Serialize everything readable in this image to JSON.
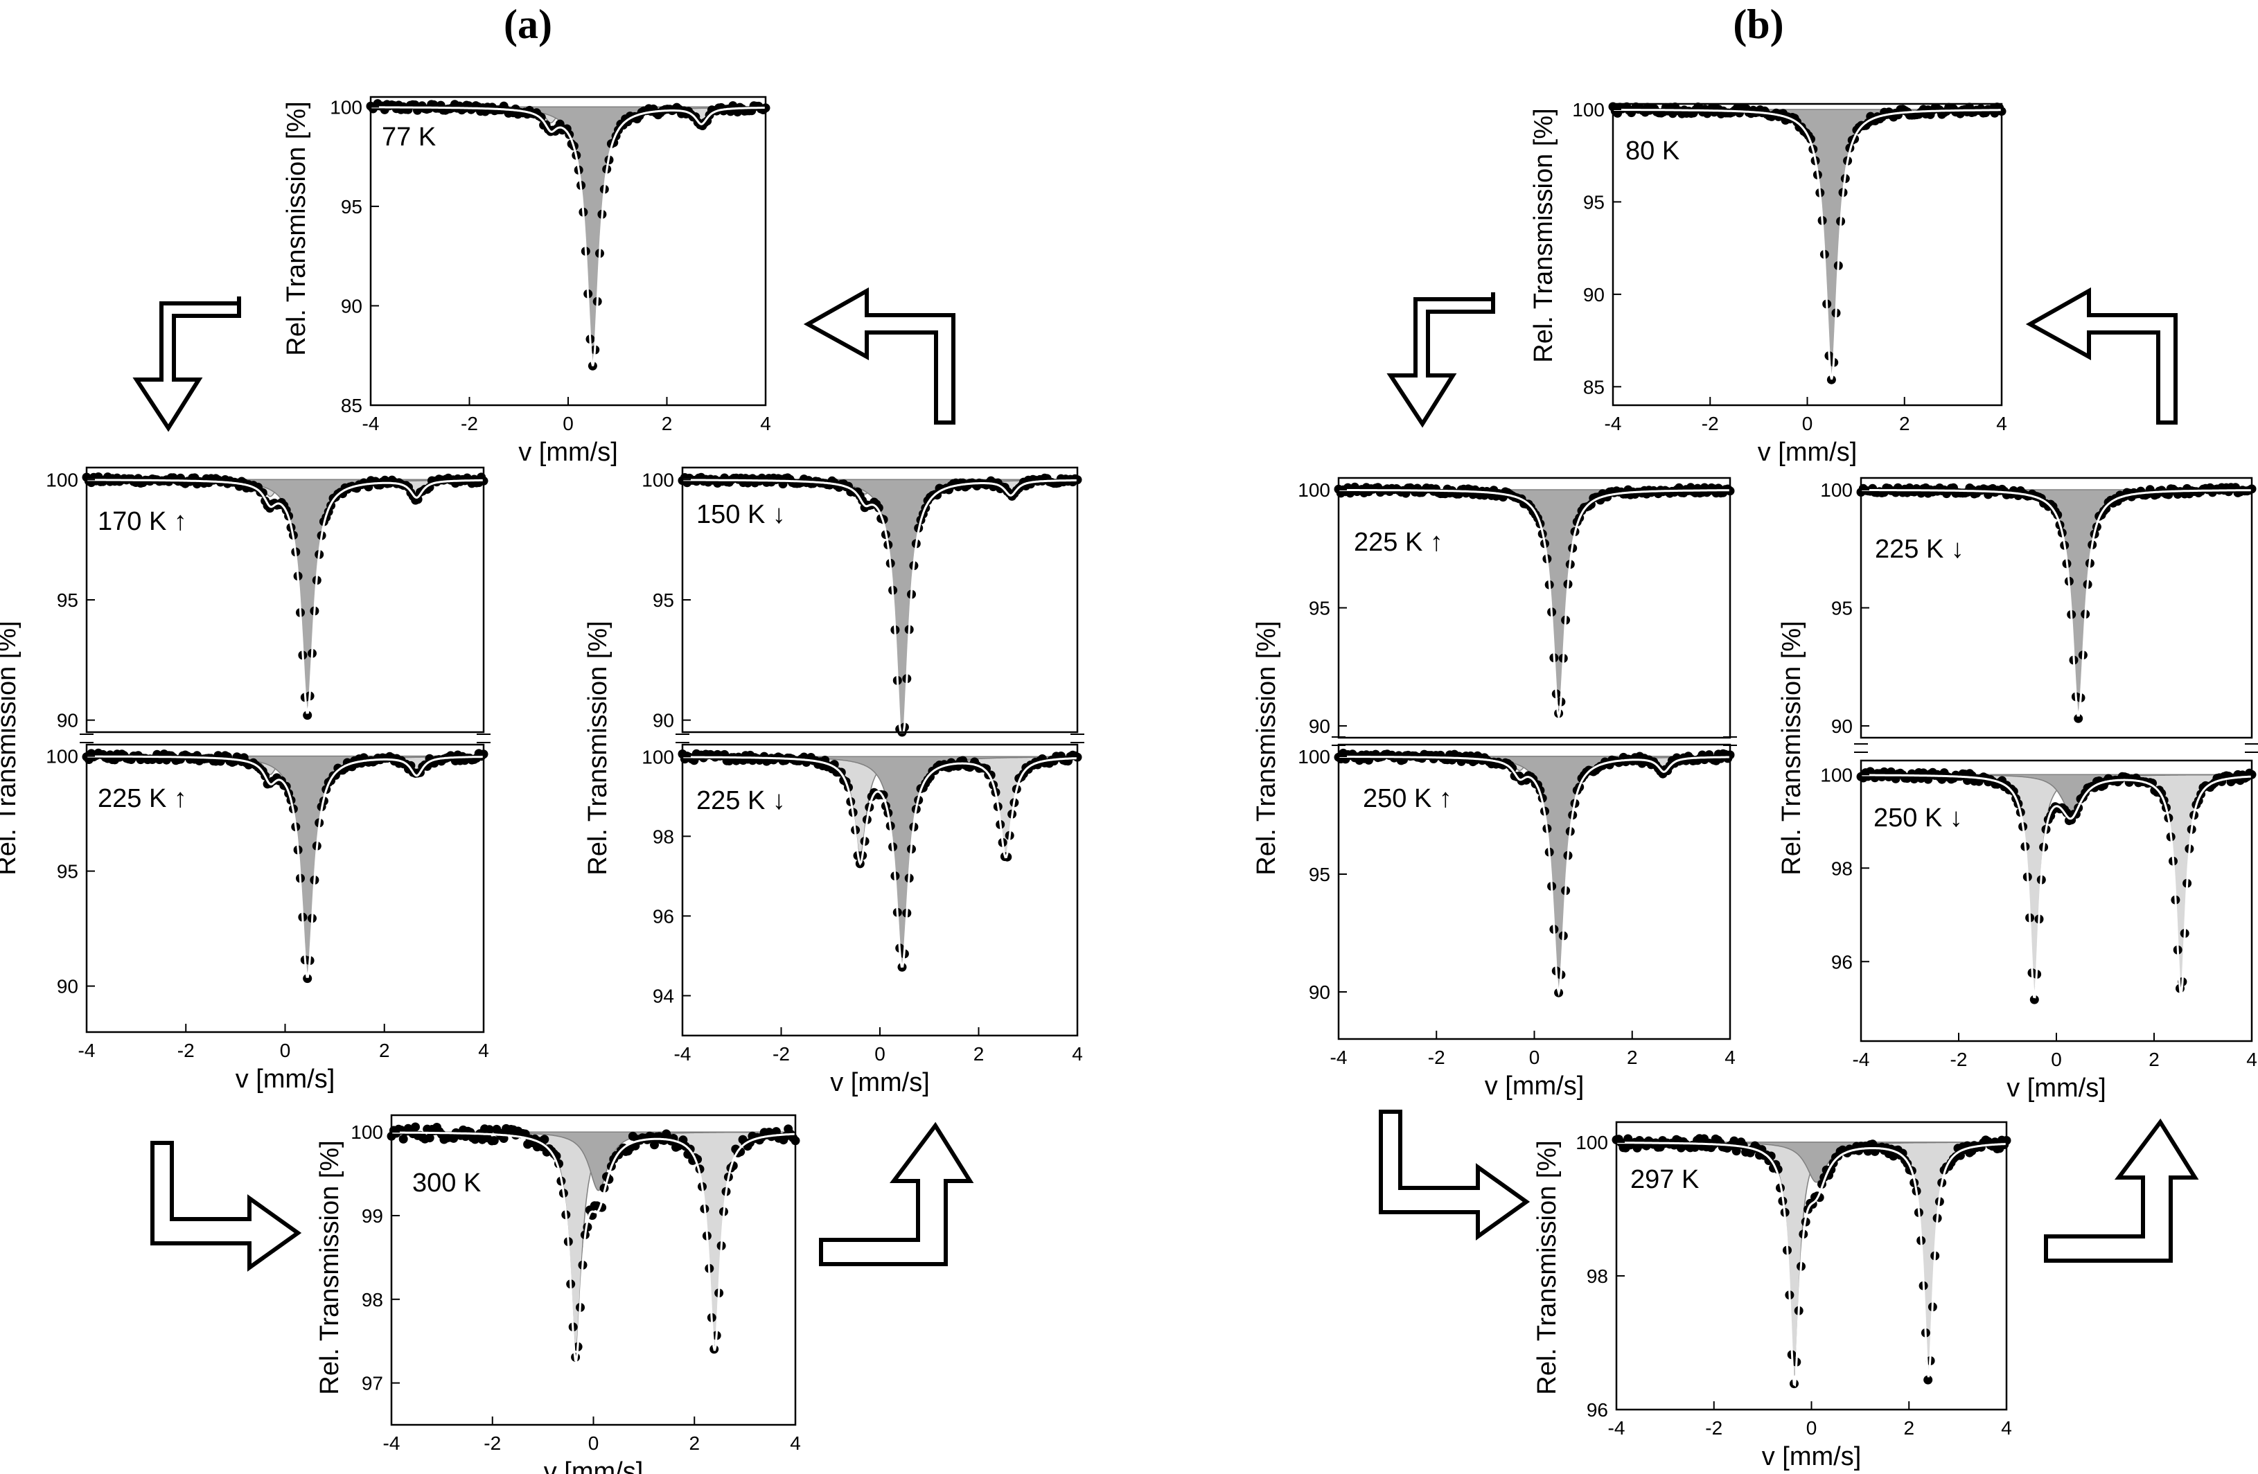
{
  "colors": {
    "background": "#ffffff",
    "axes": "#000000",
    "data_points": "#000000",
    "fit_line": "#ffffff",
    "singlet_fill": "#a9a9a9",
    "doublet_fill": "#d9d9d9",
    "arrow": "#000000"
  },
  "panels": [
    {
      "id": "a",
      "label": "(a)"
    },
    {
      "id": "b",
      "label": "(b)"
    }
  ],
  "icons": [
    "arrow-down-icon",
    "arrow-left-icon",
    "arrow-right-icon",
    "arrow-up-icon"
  ],
  "chart_data": [
    {
      "panel": "a",
      "type": "scatter",
      "temperature": "77 K",
      "xlabel": "v [mm/s]",
      "ylabel": "Rel. Transmission [%]",
      "xlim": [
        -4,
        4
      ],
      "ylim": [
        85,
        100.5
      ],
      "yticks": [
        85,
        90,
        95,
        100
      ],
      "xticks": [
        -4,
        -2,
        0,
        2,
        4
      ],
      "components": [
        {
          "kind": "singlet",
          "center": 0.5,
          "depth": 13.0,
          "width": 0.32
        },
        {
          "kind": "doublet",
          "centers": [
            -0.35,
            2.7
          ],
          "depth": 0.8,
          "width": 0.3
        }
      ]
    },
    {
      "panel": "a",
      "type": "scatter",
      "temperature": "170 K ↑",
      "ylabel": "Rel. Transmission [%]",
      "xlim": [
        -4,
        4
      ],
      "ylim": [
        89.5,
        100.5
      ],
      "yticks": [
        90,
        95,
        100
      ],
      "components": [
        {
          "kind": "singlet",
          "center": 0.45,
          "depth": 9.7,
          "width": 0.32
        },
        {
          "kind": "doublet",
          "centers": [
            -0.3,
            2.65
          ],
          "depth": 0.7,
          "width": 0.3
        }
      ]
    },
    {
      "panel": "a",
      "type": "scatter",
      "temperature": "225 K ↑",
      "xlabel": "v [mm/s]",
      "xlim": [
        -4,
        4
      ],
      "ylim": [
        88,
        100.5
      ],
      "yticks": [
        90,
        95,
        100
      ],
      "xticks": [
        -4,
        -2,
        0,
        2,
        4
      ],
      "components": [
        {
          "kind": "singlet",
          "center": 0.45,
          "depth": 9.6,
          "width": 0.32
        },
        {
          "kind": "doublet",
          "centers": [
            -0.3,
            2.65
          ],
          "depth": 0.8,
          "width": 0.3
        }
      ]
    },
    {
      "panel": "a",
      "type": "scatter",
      "temperature": "150 K ↓",
      "ylabel": "Rel. Transmission [%]",
      "xlim": [
        -4,
        4
      ],
      "ylim": [
        89.5,
        100.5
      ],
      "yticks": [
        90,
        95,
        100
      ],
      "components": [
        {
          "kind": "singlet",
          "center": 0.45,
          "depth": 11.2,
          "width": 0.32
        },
        {
          "kind": "doublet",
          "centers": [
            -0.3,
            2.65
          ],
          "depth": 0.6,
          "width": 0.3
        }
      ]
    },
    {
      "panel": "a",
      "type": "scatter",
      "temperature": "225 K ↓",
      "xlabel": "v [mm/s]",
      "xlim": [
        -4,
        4
      ],
      "ylim": [
        93,
        100.3
      ],
      "yticks": [
        94,
        96,
        98,
        100
      ],
      "xticks": [
        -4,
        -2,
        0,
        2,
        4
      ],
      "components": [
        {
          "kind": "singlet",
          "center": 0.45,
          "depth": 5.2,
          "width": 0.32
        },
        {
          "kind": "doublet",
          "centers": [
            -0.4,
            2.55
          ],
          "depth": 2.5,
          "width": 0.3
        }
      ]
    },
    {
      "panel": "a",
      "type": "scatter",
      "temperature": "300 K",
      "xlabel": "v [mm/s]",
      "ylabel": "Rel. Transmission [%]",
      "xlim": [
        -4,
        4
      ],
      "ylim": [
        96.5,
        100.2
      ],
      "yticks": [
        97,
        98,
        99,
        100
      ],
      "xticks": [
        -4,
        -2,
        0,
        2,
        4
      ],
      "components": [
        {
          "kind": "singlet",
          "center": 0.1,
          "depth": 0.7,
          "width": 0.45
        },
        {
          "kind": "doublet",
          "centers": [
            -0.35,
            2.4
          ],
          "depth": 2.6,
          "width": 0.28
        }
      ]
    },
    {
      "panel": "b",
      "type": "scatter",
      "temperature": "80 K",
      "xlabel": "v [mm/s]",
      "ylabel": "Rel. Transmission [%]",
      "xlim": [
        -4,
        4
      ],
      "ylim": [
        84,
        100.3
      ],
      "yticks": [
        85,
        90,
        95,
        100
      ],
      "xticks": [
        -4,
        -2,
        0,
        2,
        4
      ],
      "components": [
        {
          "kind": "singlet",
          "center": 0.5,
          "depth": 14.6,
          "width": 0.32
        }
      ]
    },
    {
      "panel": "b",
      "type": "scatter",
      "temperature": "225 K ↑",
      "ylabel": "Rel. Transmission [%]",
      "xlim": [
        -4,
        4
      ],
      "ylim": [
        89.5,
        100.5
      ],
      "yticks": [
        90,
        95,
        100
      ],
      "components": [
        {
          "kind": "singlet",
          "center": 0.5,
          "depth": 9.6,
          "width": 0.32
        }
      ]
    },
    {
      "panel": "b",
      "type": "scatter",
      "temperature": "250 K ↑",
      "xlabel": "v [mm/s]",
      "xlim": [
        -4,
        4
      ],
      "ylim": [
        88,
        100.5
      ],
      "yticks": [
        90,
        95,
        100
      ],
      "xticks": [
        -4,
        -2,
        0,
        2,
        4
      ],
      "components": [
        {
          "kind": "singlet",
          "center": 0.5,
          "depth": 10.0,
          "width": 0.32
        },
        {
          "kind": "doublet",
          "centers": [
            -0.3,
            2.65
          ],
          "depth": 0.6,
          "width": 0.3
        }
      ]
    },
    {
      "panel": "b",
      "type": "scatter",
      "temperature": "225 K ↓",
      "ylabel": "Rel. Transmission [%]",
      "xlim": [
        -4,
        4
      ],
      "ylim": [
        89.5,
        100.5
      ],
      "yticks": [
        90,
        95,
        100
      ],
      "components": [
        {
          "kind": "singlet",
          "center": 0.45,
          "depth": 9.6,
          "width": 0.32
        }
      ]
    },
    {
      "panel": "b",
      "type": "scatter",
      "temperature": "250 K ↓",
      "xlabel": "v [mm/s]",
      "xlim": [
        -4,
        4
      ],
      "ylim": [
        94.3,
        100.3
      ],
      "yticks": [
        96,
        98,
        100
      ],
      "xticks": [
        -4,
        -2,
        0,
        2,
        4
      ],
      "components": [
        {
          "kind": "singlet",
          "center": 0.3,
          "depth": 0.8,
          "width": 0.5
        },
        {
          "kind": "doublet",
          "centers": [
            -0.45,
            2.55
          ],
          "depth": 4.7,
          "width": 0.25
        }
      ]
    },
    {
      "panel": "b",
      "type": "scatter",
      "temperature": "297 K",
      "xlabel": "v [mm/s]",
      "ylabel": "Rel. Transmission [%]",
      "xlim": [
        -4,
        4
      ],
      "ylim": [
        96,
        100.3
      ],
      "yticks": [
        96,
        98,
        100
      ],
      "xticks": [
        -4,
        -2,
        0,
        2,
        4
      ],
      "components": [
        {
          "kind": "singlet",
          "center": 0.1,
          "depth": 0.6,
          "width": 0.5
        },
        {
          "kind": "doublet",
          "centers": [
            -0.35,
            2.4
          ],
          "depth": 3.5,
          "width": 0.25
        }
      ]
    }
  ]
}
